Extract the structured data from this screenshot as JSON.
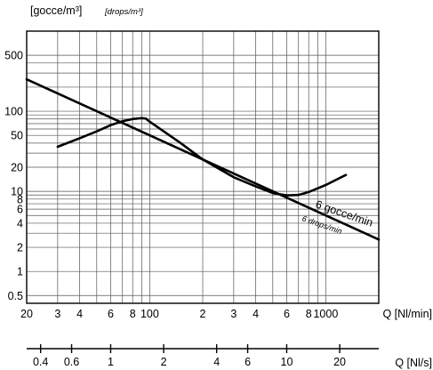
{
  "chart_data": {
    "type": "line",
    "y_axis": {
      "label": "[gocce/m³]",
      "label_alt": "[drops/m³]",
      "scale": "log",
      "range": [
        0.4,
        1000
      ],
      "tick_values": [
        0.5,
        1,
        2,
        4,
        6,
        8,
        10,
        20,
        50,
        100,
        500
      ],
      "tick_labels": [
        "0.5",
        "1",
        "2",
        "4",
        "6",
        "8",
        "10",
        "20",
        "50",
        "100",
        "500"
      ]
    },
    "x_axis": {
      "label": "Q [Nl/min]",
      "scale": "log",
      "range": [
        20,
        2000
      ],
      "tick_values": [
        20,
        30,
        40,
        60,
        80,
        100,
        200,
        300,
        400,
        600,
        800,
        1000
      ],
      "tick_labels": [
        "20",
        "3",
        "4",
        "6",
        "8",
        "100",
        "2",
        "3",
        "4",
        "6",
        "8",
        "1000"
      ]
    },
    "x_axis_secondary": {
      "label": "Q [Nl/s]",
      "scale": "log",
      "tick_values": [
        0.4,
        0.6,
        1,
        2,
        4,
        6,
        10,
        20
      ],
      "tick_labels": [
        "0.4",
        "0.6",
        "1",
        "2",
        "4",
        "6",
        "10",
        "20"
      ]
    },
    "grid": true,
    "series": [
      {
        "name": "6 gocce/min",
        "name_alt": "6 drops/min",
        "x": [
          20,
          2000
        ],
        "y": [
          250,
          2.5
        ]
      },
      {
        "x": [
          30,
          40,
          50,
          60,
          70,
          80,
          90,
          95,
          100,
          150,
          200,
          300,
          400,
          500,
          600,
          700,
          800,
          1000,
          1300
        ],
        "y": [
          36,
          46,
          56,
          67,
          75,
          80,
          82,
          81,
          74,
          40,
          25,
          15,
          11.5,
          9.5,
          8.9,
          9.0,
          9.8,
          12,
          16
        ]
      }
    ]
  }
}
